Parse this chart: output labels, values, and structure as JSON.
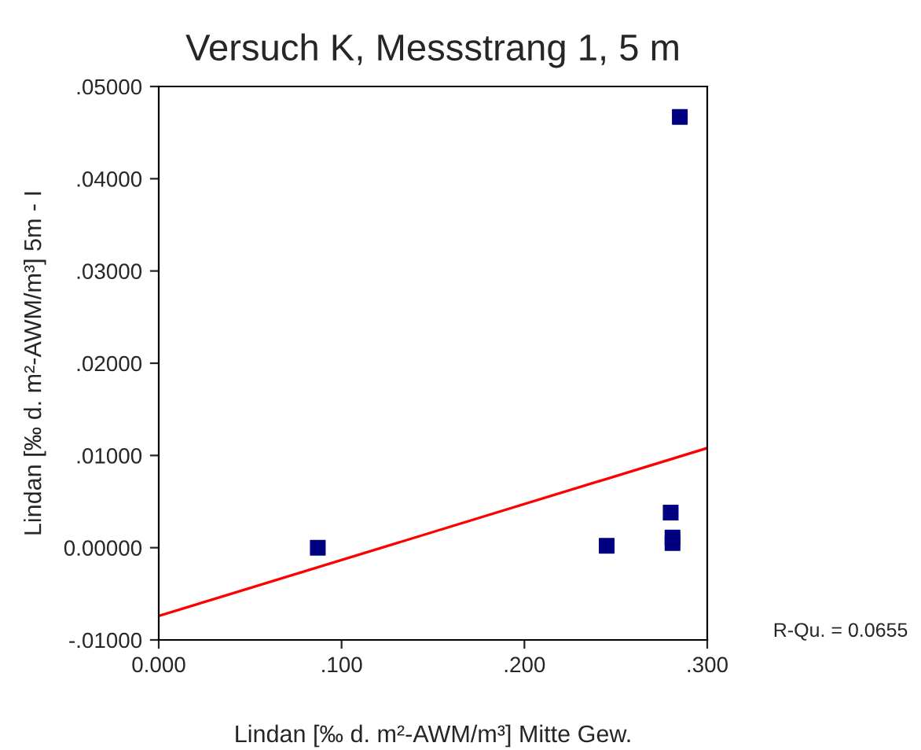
{
  "chart_data": {
    "type": "scatter",
    "title": "Versuch K, Messstrang 1, 5 m",
    "xlabel": "Lindan [‰ d. m²-AWM/m³] Mitte Gew.",
    "ylabel": "Lindan [‰ d. m²-AWM/m³] 5m - I",
    "series": [
      {
        "marker": "square",
        "color": "#000080",
        "x": [
          0.087,
          0.245,
          0.28,
          0.281,
          0.281,
          0.285
        ],
        "values": [
          0.0,
          0.0002,
          0.0038,
          0.0011,
          0.0005,
          0.0467
        ]
      },
      {
        "type": "line",
        "marker": "none",
        "color": "#ff0000",
        "x": [
          0.0,
          0.3
        ],
        "values": [
          -0.0074,
          0.0108
        ]
      }
    ],
    "xlim": [
      0.0,
      0.3
    ],
    "ylim": [
      -0.01,
      0.05
    ],
    "xticks": [
      {
        "value": 0.0,
        "label": "0.000"
      },
      {
        "value": 0.1,
        "label": ".100"
      },
      {
        "value": 0.2,
        "label": ".200"
      },
      {
        "value": 0.3,
        "label": ".300"
      }
    ],
    "yticks": [
      {
        "value": -0.01,
        "label": "-.01000"
      },
      {
        "value": 0.0,
        "label": "0.00000"
      },
      {
        "value": 0.01,
        "label": ".01000"
      },
      {
        "value": 0.02,
        "label": ".02000"
      },
      {
        "value": 0.03,
        "label": ".03000"
      },
      {
        "value": 0.04,
        "label": ".04000"
      },
      {
        "value": 0.05,
        "label": ".05000"
      }
    ],
    "grid": false,
    "legend": false,
    "annotations": [
      "R-Qu. = 0.0655"
    ]
  }
}
